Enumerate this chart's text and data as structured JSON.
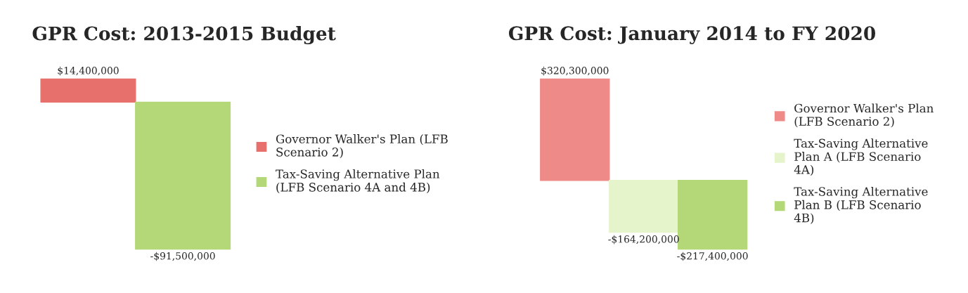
{
  "chart_data": [
    {
      "type": "bar",
      "title": "GPR Cost: 2013-2015 Budget",
      "categories": [
        null
      ],
      "legend": "right",
      "series": [
        {
          "name": "Governor Walker's Plan (LFB Scenario 2)",
          "color": "#e8706c",
          "values": [
            14400000
          ],
          "value_labels": [
            "$14,400,000"
          ]
        },
        {
          "name": "Tax-Saving Alternative Plan (LFB Scenario 4A and 4B)",
          "color": "#b4d878",
          "values": [
            -91500000
          ],
          "value_labels": [
            "-$91,500,000"
          ]
        }
      ]
    },
    {
      "type": "bar",
      "title": "GPR Cost: January 2014 to FY 2020",
      "categories": [
        null
      ],
      "legend": "right",
      "series": [
        {
          "name": "Governor Walker's Plan (LFB Scenario 2)",
          "color": "#ee8a88",
          "values": [
            320300000
          ],
          "value_labels": [
            "$320,300,000"
          ]
        },
        {
          "name": "Tax-Saving Alternative Plan A (LFB Scenario 4A)",
          "color": "#e6f4cc",
          "values": [
            -164200000
          ],
          "value_labels": [
            "-$164,200,000"
          ]
        },
        {
          "name": "Tax-Saving Alternative Plan B (LFB Scenario 4B)",
          "color": "#b4d878",
          "values": [
            -217400000
          ],
          "value_labels": [
            "-$217,400,000"
          ]
        }
      ]
    }
  ]
}
